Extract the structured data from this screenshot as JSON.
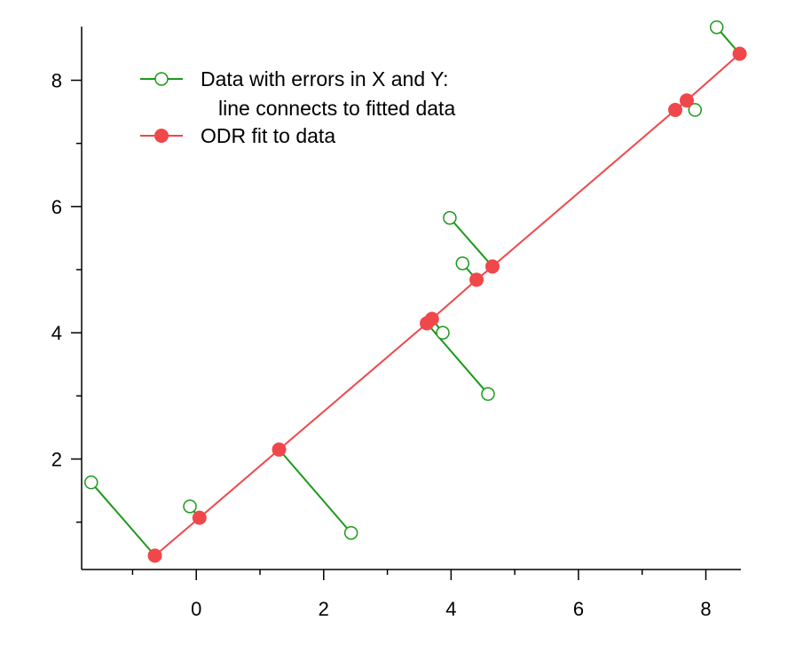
{
  "chart_data": {
    "type": "scatter",
    "title": "",
    "xlabel": "",
    "ylabel": "",
    "xlim": [
      -1.8,
      8.55
    ],
    "ylim": [
      0.25,
      8.85
    ],
    "x_ticks": [
      0,
      2,
      4,
      6,
      8
    ],
    "y_ticks": [
      2,
      4,
      6,
      8
    ],
    "grid": false,
    "legend_placement": "top-left",
    "legend": {
      "data_line1": "Data with errors in X and Y:",
      "data_line2": "line connects to fitted data",
      "fit_label": "ODR fit to data"
    },
    "colors": {
      "data": "#1a9a1a",
      "fit": "#f0474a",
      "axis": "#000000"
    },
    "series": [
      {
        "name": "Data with errors in X and Y: line connects to fitted data",
        "marker": "open-circle",
        "x": [
          -1.65,
          -0.1,
          2.43,
          4.58,
          3.87,
          3.98,
          4.18,
          7.83,
          8.17
        ],
        "y": [
          1.63,
          1.25,
          0.83,
          3.03,
          4.0,
          5.82,
          5.1,
          7.53,
          8.84
        ]
      },
      {
        "name": "ODR fit to data",
        "marker": "filled-circle",
        "x": [
          -0.65,
          0.05,
          1.3,
          3.62,
          3.7,
          4.4,
          4.65,
          7.52,
          7.7,
          8.53
        ],
        "y": [
          0.47,
          1.07,
          2.15,
          4.15,
          4.22,
          4.84,
          5.05,
          7.53,
          7.68,
          8.42
        ]
      }
    ],
    "connections": [
      [
        0,
        0
      ],
      [
        1,
        1
      ],
      [
        2,
        2
      ],
      [
        3,
        3
      ],
      [
        4,
        4
      ],
      [
        5,
        6
      ],
      [
        6,
        5
      ],
      [
        7,
        8
      ],
      [
        8,
        9
      ]
    ]
  }
}
